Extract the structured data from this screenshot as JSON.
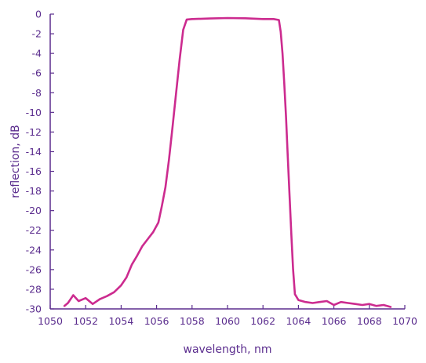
{
  "chart_data": {
    "type": "line",
    "xlabel": "wavelength, nm",
    "ylabel": "reflection, dB",
    "xlim": [
      1050,
      1070
    ],
    "ylim": [
      -30,
      0
    ],
    "x_ticks": [
      1050,
      1052,
      1054,
      1056,
      1058,
      1060,
      1062,
      1064,
      1066,
      1068,
      1070
    ],
    "y_ticks": [
      0,
      -2,
      -4,
      -6,
      -8,
      -10,
      -12,
      -14,
      -16,
      -18,
      -20,
      -22,
      -24,
      -26,
      -28,
      -30
    ],
    "grid": false,
    "colors": {
      "axis": "#5b2d8e",
      "series": "#cc2b8f"
    },
    "series": [
      {
        "x": [
          1050.8,
          1051.0,
          1051.3,
          1051.6,
          1052.0,
          1052.4,
          1052.8,
          1053.2,
          1053.6,
          1054.0,
          1054.3,
          1054.6,
          1054.9,
          1055.2,
          1055.5,
          1055.8,
          1056.1,
          1056.3,
          1056.5,
          1056.7,
          1056.9,
          1057.1,
          1057.3,
          1057.5,
          1057.7,
          1058.0,
          1059.0,
          1060.0,
          1061.0,
          1062.0,
          1062.6,
          1062.9,
          1063.0,
          1063.1,
          1063.2,
          1063.3,
          1063.4,
          1063.5,
          1063.6,
          1063.7,
          1063.8,
          1064.0,
          1064.4,
          1064.8,
          1065.2,
          1065.6,
          1066.0,
          1066.4,
          1066.8,
          1067.2,
          1067.6,
          1068.0,
          1068.4,
          1068.8,
          1069.2
        ],
        "y": [
          -29.7,
          -29.4,
          -28.6,
          -29.2,
          -28.9,
          -29.5,
          -29.0,
          -28.7,
          -28.3,
          -27.6,
          -26.8,
          -25.5,
          -24.6,
          -23.6,
          -22.9,
          -22.2,
          -21.2,
          -19.5,
          -17.6,
          -14.8,
          -11.5,
          -8.0,
          -4.6,
          -1.6,
          -0.55,
          -0.5,
          -0.45,
          -0.4,
          -0.42,
          -0.5,
          -0.5,
          -0.6,
          -1.8,
          -4.0,
          -7.0,
          -10.5,
          -14.5,
          -18.5,
          -22.5,
          -26.0,
          -28.5,
          -29.1,
          -29.3,
          -29.4,
          -29.3,
          -29.2,
          -29.6,
          -29.3,
          -29.4,
          -29.5,
          -29.6,
          -29.5,
          -29.7,
          -29.6,
          -29.8
        ]
      }
    ]
  }
}
